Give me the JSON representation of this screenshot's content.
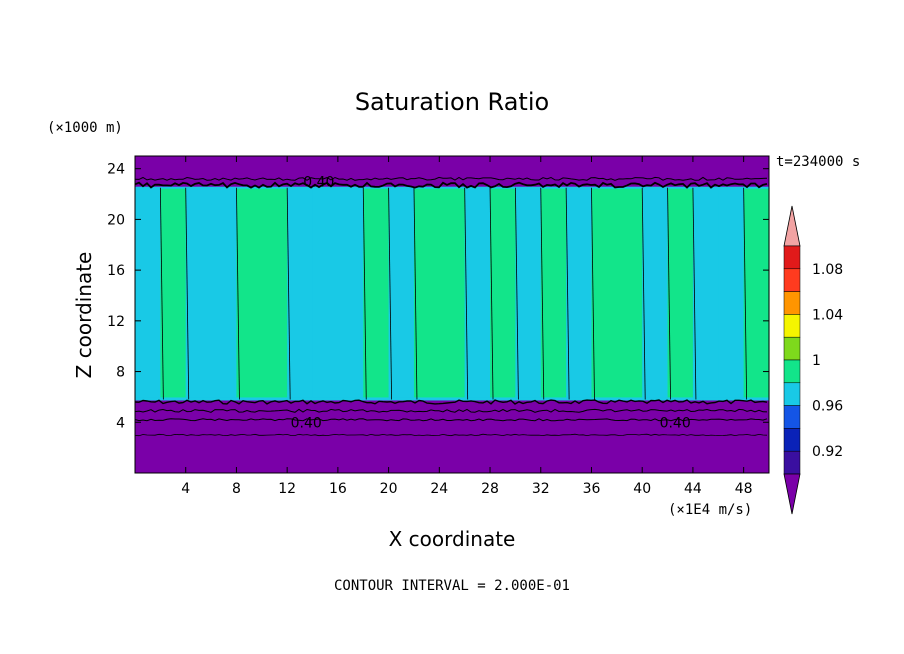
{
  "chart_data": {
    "type": "heatmap",
    "title": "Saturation Ratio",
    "xlabel": "X coordinate",
    "ylabel": "Z coordinate",
    "x_unit": "(×1E4 m/s)",
    "y_unit": "(×1000 m)",
    "timestamp": "t=234000 s",
    "footer": "CONTOUR INTERVAL = 2.000E-01",
    "xlim": [
      0,
      50
    ],
    "ylim": [
      0,
      25
    ],
    "x_ticks": [
      4,
      8,
      12,
      16,
      20,
      24,
      28,
      32,
      36,
      40,
      44,
      48
    ],
    "y_ticks": [
      4,
      8,
      12,
      16,
      20,
      24
    ],
    "contour_labels": [
      {
        "text": "0.40",
        "x": 13.5,
        "z": 4.0
      },
      {
        "text": "0.40",
        "x": 42.6,
        "z": 4.0
      },
      {
        "text": "0.40",
        "x": 14.5,
        "z": 23.0
      }
    ],
    "colorbar": {
      "levels": [
        0.92,
        0.96,
        1,
        1.04,
        1.08
      ],
      "colors": [
        "#7a00a8",
        "#3a0fa0",
        "#0a22b8",
        "#1455e6",
        "#19c9e6",
        "#12e58a",
        "#7ed91c",
        "#f5f500",
        "#ff9500",
        "#ff3b1f",
        "#e11a1a",
        "#f2a3a3"
      ]
    },
    "field": {
      "column_values_upper": [
        0.98,
        1.0,
        0.98,
        0.98,
        1.0,
        1.0,
        0.98,
        0.98,
        0.98,
        1.0,
        0.98,
        1.0,
        1.0,
        0.98,
        1.0,
        0.98,
        1.0,
        0.98,
        1.0,
        1.0,
        0.98,
        1.0,
        0.98,
        0.98,
        1.0
      ],
      "lower_layer_top_z": 5.8,
      "upper_layer_bottom_z": 22.5,
      "layer_value": 0.4
    }
  }
}
